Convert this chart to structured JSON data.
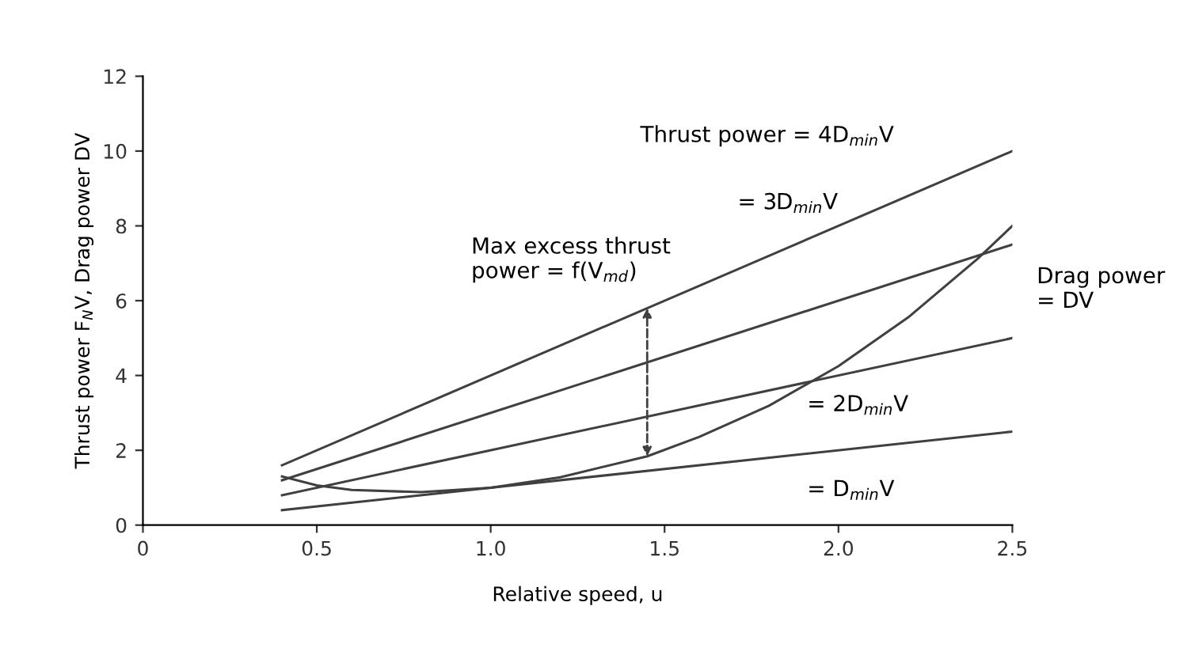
{
  "chart_data": {
    "type": "line",
    "xlabel": "Relative speed, u",
    "ylabel": "Thrust power F$_{N}$V, Drag power DV",
    "xlim": [
      0,
      2.5
    ],
    "ylim": [
      0,
      12
    ],
    "xticks": [
      0,
      0.5,
      {
        "value": 1,
        "label": "1.0"
      },
      1.5,
      {
        "value": 2,
        "label": "2.0"
      },
      2.5
    ],
    "yticks": [
      0,
      2,
      4,
      6,
      8,
      10,
      12
    ],
    "grid": false,
    "legend": false,
    "marker": "none",
    "line_style": "solid",
    "series": [
      {
        "color": "#404040",
        "x": [
          0.4,
          2.5
        ],
        "values": [
          1.6,
          10
        ]
      },
      {
        "color": "#404040",
        "x": [
          0.4,
          2.5
        ],
        "values": [
          1.2,
          7.5
        ]
      },
      {
        "color": "#404040",
        "x": [
          0.4,
          2.5
        ],
        "values": [
          0.8,
          5
        ]
      },
      {
        "color": "#404040",
        "x": [
          0.4,
          2.5
        ],
        "values": [
          0.4,
          2.5
        ]
      },
      {
        "color": "#404040",
        "x": [
          0.4,
          0.5,
          0.6,
          0.8,
          1.0,
          1.2,
          1.45,
          1.6,
          1.8,
          2.0,
          2.2,
          2.4,
          2.5
        ],
        "values": [
          1.3,
          1.06,
          0.94,
          0.88,
          1.0,
          1.28,
          1.84,
          2.36,
          3.19,
          4.25,
          5.55,
          7.12,
          8.0
        ]
      }
    ],
    "annotations": [
      "Thrust power = 4D$_{min}$V",
      "= 3D$_{min}$V",
      {
        "text": "Max excess thrust\npower = f(V$_{md}$)",
        "x": 1.45,
        "y": 5.8
      },
      "Drag power\n= DV",
      "= 2D$_{min}$V",
      "= D$_{min}$V"
    ]
  }
}
